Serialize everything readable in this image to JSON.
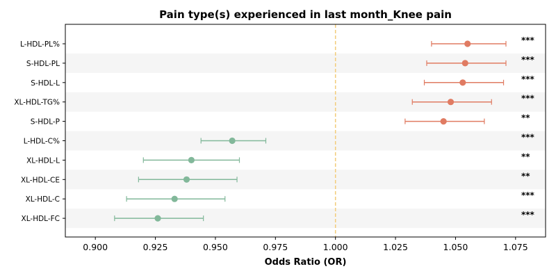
{
  "chart_data": {
    "type": "forest",
    "title": "Pain type(s) experienced in last month_Knee pain",
    "xlabel": "Odds Ratio (OR)",
    "xlim": [
      0.8875,
      1.0875
    ],
    "xticks": [
      0.9,
      0.925,
      0.95,
      0.975,
      1.0,
      1.025,
      1.05,
      1.075
    ],
    "xtick_labels": [
      "0.900",
      "0.925",
      "0.950",
      "0.975",
      "1.000",
      "1.025",
      "1.050",
      "1.075"
    ],
    "reference_line": 1.0,
    "colors": {
      "positive": "#e07b62",
      "negative": "#82b89a",
      "reference": "#f2cc7a",
      "band": "#f5f5f5"
    },
    "rows": [
      {
        "label": "L-HDL-PL%",
        "or": 1.055,
        "lo": 1.04,
        "hi": 1.071,
        "sig": "***"
      },
      {
        "label": "S-HDL-PL",
        "or": 1.054,
        "lo": 1.038,
        "hi": 1.071,
        "sig": "***"
      },
      {
        "label": "S-HDL-L",
        "or": 1.053,
        "lo": 1.037,
        "hi": 1.07,
        "sig": "***"
      },
      {
        "label": "XL-HDL-TG%",
        "or": 1.048,
        "lo": 1.032,
        "hi": 1.065,
        "sig": "***"
      },
      {
        "label": "S-HDL-P",
        "or": 1.045,
        "lo": 1.029,
        "hi": 1.062,
        "sig": "**"
      },
      {
        "label": "L-HDL-C%",
        "or": 0.957,
        "lo": 0.944,
        "hi": 0.971,
        "sig": "***"
      },
      {
        "label": "XL-HDL-L",
        "or": 0.94,
        "lo": 0.92,
        "hi": 0.96,
        "sig": "**"
      },
      {
        "label": "XL-HDL-CE",
        "or": 0.938,
        "lo": 0.918,
        "hi": 0.959,
        "sig": "**"
      },
      {
        "label": "XL-HDL-C",
        "or": 0.933,
        "lo": 0.913,
        "hi": 0.954,
        "sig": "***"
      },
      {
        "label": "XL-HDL-FC",
        "or": 0.926,
        "lo": 0.908,
        "hi": 0.945,
        "sig": "***"
      }
    ]
  }
}
